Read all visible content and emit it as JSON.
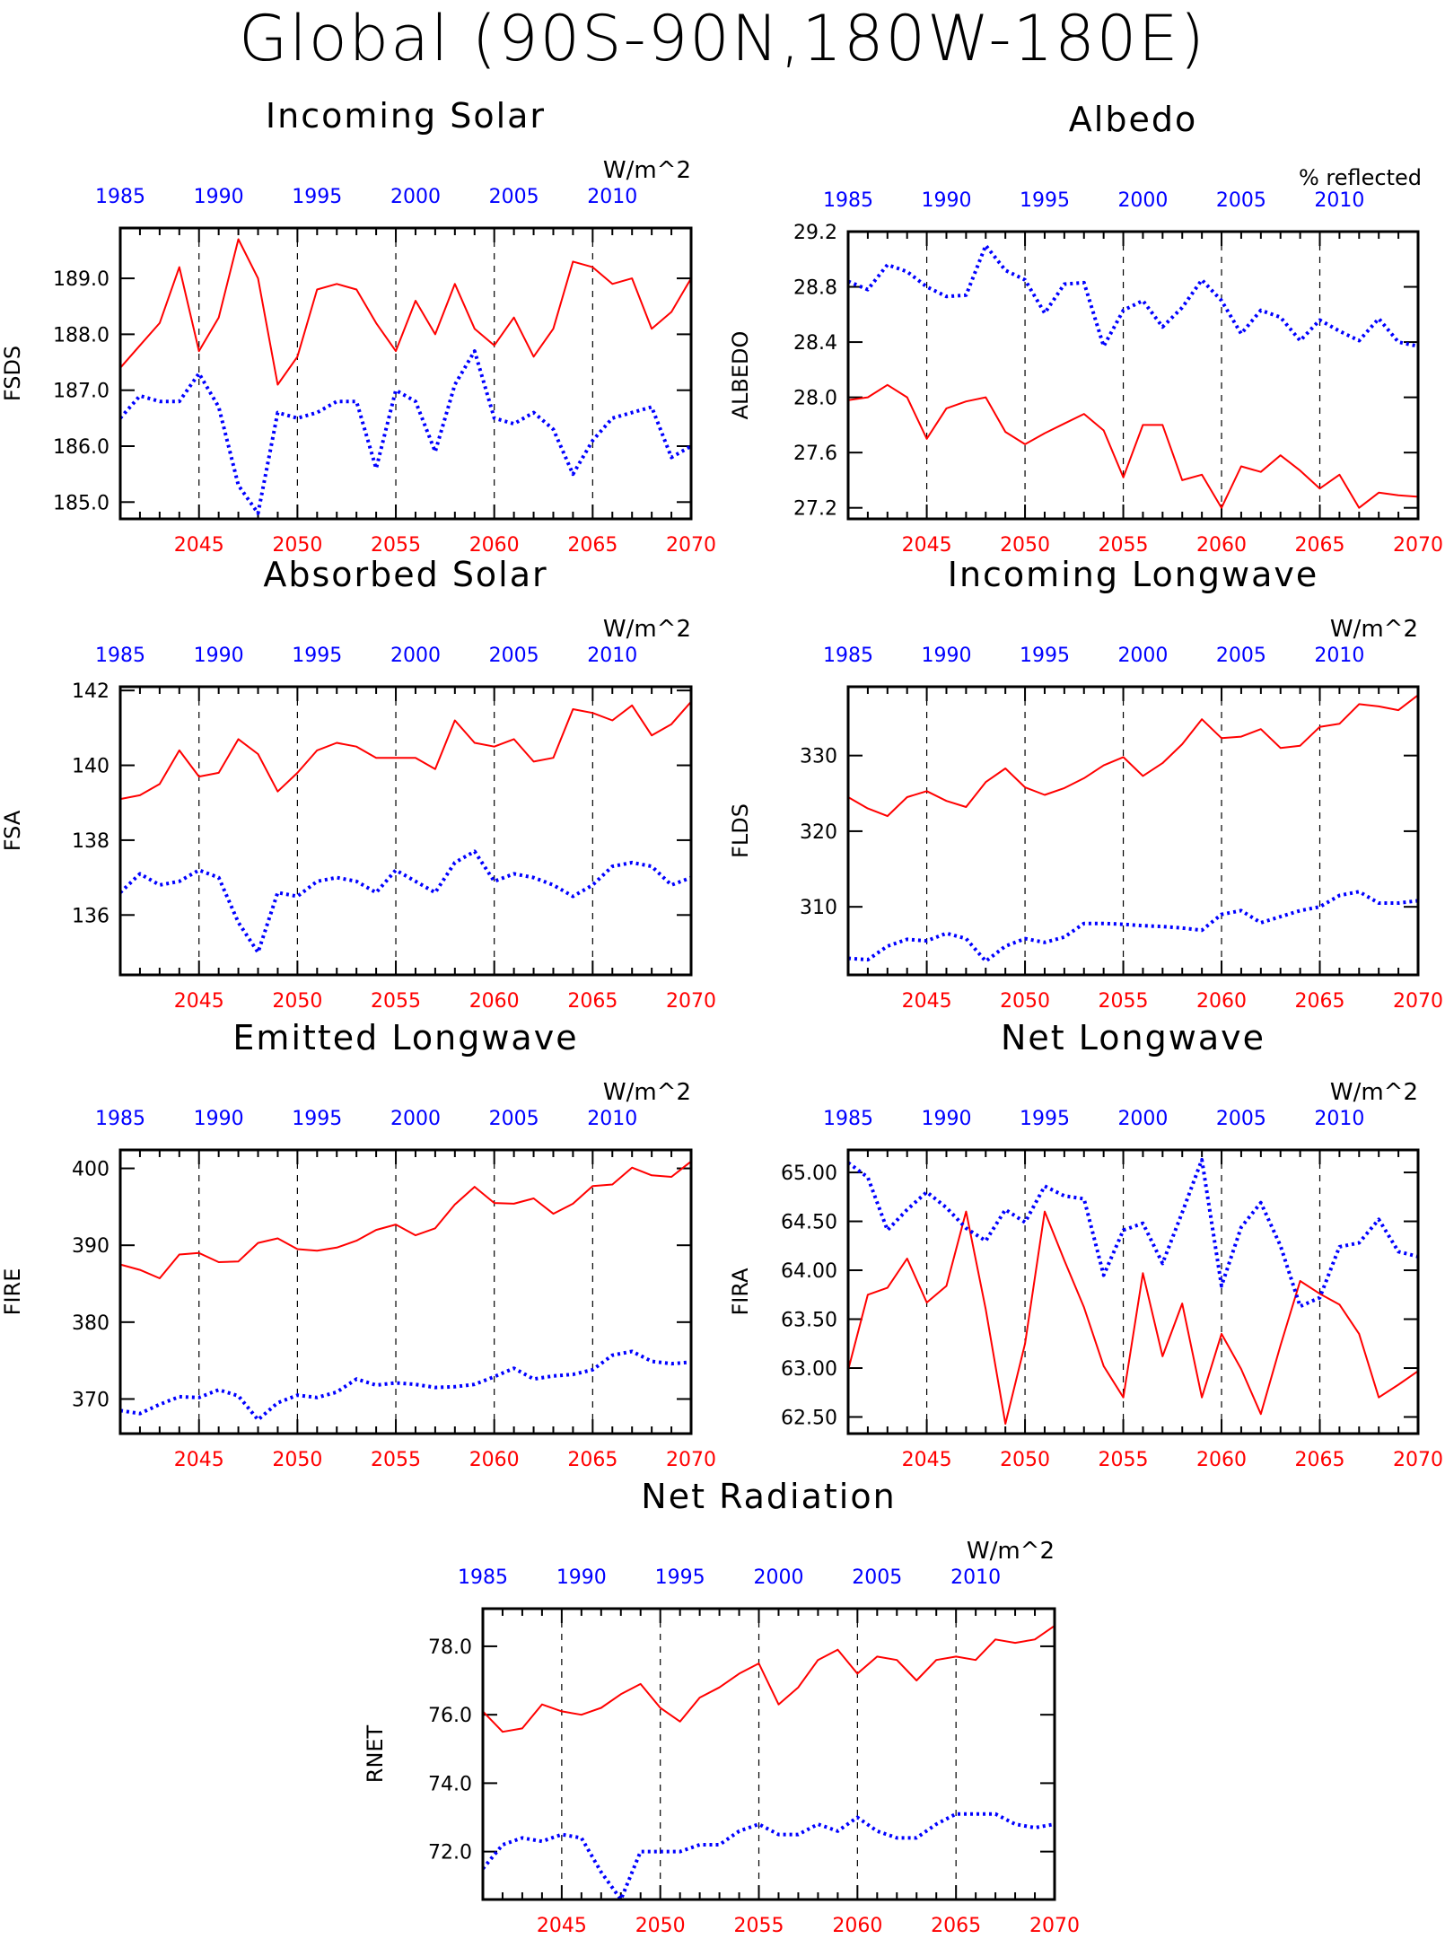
{
  "page": {
    "title": "Global (90S-90N,180W-180E)"
  },
  "chart_data": [
    {
      "type": "line",
      "title": "Incoming Solar",
      "ylabel": "FSDS",
      "units": "W/m^2",
      "top_axis_label": "",
      "xlim": [
        2041,
        2070
      ],
      "ylim": [
        184.7,
        189.9
      ],
      "yticks": [
        185,
        186,
        187,
        188,
        189
      ],
      "ytick_labels": [
        "185.0",
        "186.0",
        "187.0",
        "188.0",
        "189.0"
      ],
      "bottom_ticks": [
        "2045",
        "2050",
        "2055",
        "2060",
        "2065",
        "2070"
      ],
      "top_ticks": [
        "1985",
        "1990",
        "1995",
        "2000",
        "2005",
        "2010"
      ],
      "x": [
        2041,
        2042,
        2043,
        2044,
        2045,
        2046,
        2047,
        2048,
        2049,
        2050,
        2051,
        2052,
        2053,
        2054,
        2055,
        2056,
        2057,
        2058,
        2059,
        2060,
        2061,
        2062,
        2063,
        2064,
        2065,
        2066,
        2067,
        2068,
        2069,
        2070
      ],
      "series": [
        {
          "color": "#ff0000",
          "style": "solid",
          "values": [
            187.4,
            187.8,
            188.2,
            189.2,
            187.7,
            188.3,
            189.7,
            189.0,
            187.1,
            187.6,
            188.8,
            188.9,
            188.8,
            188.2,
            187.7,
            188.6,
            188.0,
            188.9,
            188.1,
            187.8,
            188.3,
            187.6,
            188.1,
            189.3,
            189.2,
            188.9,
            189.0,
            188.1,
            188.4,
            189.0
          ]
        },
        {
          "color": "#0000ff",
          "style": "dotted",
          "values": [
            186.5,
            186.9,
            186.8,
            186.8,
            187.3,
            186.7,
            185.3,
            184.8,
            186.6,
            186.5,
            186.6,
            186.8,
            186.8,
            185.6,
            187.0,
            186.8,
            185.9,
            187.1,
            187.7,
            186.5,
            186.4,
            186.6,
            186.3,
            185.5,
            186.1,
            186.5,
            186.6,
            186.7,
            185.8,
            186.0
          ]
        }
      ]
    },
    {
      "type": "line",
      "title": "Albedo",
      "ylabel": "ALBEDO",
      "units": "",
      "top_axis_label": "% reflected",
      "xlim": [
        2041,
        2070
      ],
      "ylim": [
        27.12,
        29.2
      ],
      "yticks": [
        27.2,
        27.6,
        28.0,
        28.4,
        28.8,
        29.2
      ],
      "ytick_labels": [
        "27.2",
        "27.6",
        "28.0",
        "28.4",
        "28.8",
        "29.2"
      ],
      "bottom_ticks": [
        "2045",
        "2050",
        "2055",
        "2060",
        "2065",
        "2070"
      ],
      "top_ticks": [
        "1985",
        "1990",
        "1995",
        "2000",
        "2005",
        "2010"
      ],
      "x": [
        2041,
        2042,
        2043,
        2044,
        2045,
        2046,
        2047,
        2048,
        2049,
        2050,
        2051,
        2052,
        2053,
        2054,
        2055,
        2056,
        2057,
        2058,
        2059,
        2060,
        2061,
        2062,
        2063,
        2064,
        2065,
        2066,
        2067,
        2068,
        2069,
        2070
      ],
      "series": [
        {
          "color": "#ff0000",
          "style": "solid",
          "values": [
            27.98,
            28.0,
            28.09,
            28.0,
            27.7,
            27.92,
            27.97,
            28.0,
            27.75,
            27.66,
            27.74,
            27.81,
            27.88,
            27.76,
            27.42,
            27.8,
            27.8,
            27.4,
            27.44,
            27.2,
            27.5,
            27.46,
            27.58,
            27.47,
            27.34,
            27.44,
            27.2,
            27.31,
            27.29,
            27.28
          ]
        },
        {
          "color": "#0000ff",
          "style": "dotted",
          "values": [
            28.84,
            28.78,
            28.96,
            28.91,
            28.8,
            28.73,
            28.74,
            29.1,
            28.92,
            28.85,
            28.61,
            28.82,
            28.83,
            28.37,
            28.63,
            28.7,
            28.51,
            28.65,
            28.85,
            28.7,
            28.46,
            28.63,
            28.58,
            28.41,
            28.56,
            28.48,
            28.41,
            28.57,
            28.4,
            28.37
          ]
        }
      ]
    },
    {
      "type": "line",
      "title": "Absorbed Solar",
      "ylabel": "FSA",
      "units": "W/m^2",
      "top_axis_label": "",
      "xlim": [
        2041,
        2070
      ],
      "ylim": [
        134.4,
        142.1
      ],
      "yticks": [
        136,
        138,
        140,
        142
      ],
      "ytick_labels": [
        "136",
        "138",
        "140",
        "142"
      ],
      "bottom_ticks": [
        "2045",
        "2050",
        "2055",
        "2060",
        "2065",
        "2070"
      ],
      "top_ticks": [
        "1985",
        "1990",
        "1995",
        "2000",
        "2005",
        "2010"
      ],
      "x": [
        2041,
        2042,
        2043,
        2044,
        2045,
        2046,
        2047,
        2048,
        2049,
        2050,
        2051,
        2052,
        2053,
        2054,
        2055,
        2056,
        2057,
        2058,
        2059,
        2060,
        2061,
        2062,
        2063,
        2064,
        2065,
        2066,
        2067,
        2068,
        2069,
        2070
      ],
      "series": [
        {
          "color": "#ff0000",
          "style": "solid",
          "values": [
            139.1,
            139.2,
            139.5,
            140.4,
            139.7,
            139.8,
            140.7,
            140.3,
            139.3,
            139.8,
            140.4,
            140.6,
            140.5,
            140.2,
            140.2,
            140.2,
            139.9,
            141.2,
            140.6,
            140.5,
            140.7,
            140.1,
            140.2,
            141.5,
            141.4,
            141.2,
            141.6,
            140.8,
            141.1,
            141.7
          ]
        },
        {
          "color": "#0000ff",
          "style": "dotted",
          "values": [
            136.6,
            137.1,
            136.8,
            136.9,
            137.2,
            137.0,
            135.8,
            135.0,
            136.6,
            136.5,
            136.9,
            137.0,
            136.9,
            136.6,
            137.2,
            136.9,
            136.6,
            137.4,
            137.7,
            136.9,
            137.1,
            137.0,
            136.8,
            136.5,
            136.8,
            137.3,
            137.4,
            137.3,
            136.8,
            137.0
          ]
        }
      ]
    },
    {
      "type": "line",
      "title": "Incoming Longwave",
      "ylabel": "FLDS",
      "units": "W/m^2",
      "top_axis_label": "",
      "xlim": [
        2041,
        2070
      ],
      "ylim": [
        301.0,
        339.1
      ],
      "yticks": [
        310,
        320,
        330
      ],
      "ytick_labels": [
        "310",
        "320",
        "330"
      ],
      "bottom_ticks": [
        "2045",
        "2050",
        "2055",
        "2060",
        "2065",
        "2070"
      ],
      "top_ticks": [
        "1985",
        "1990",
        "1995",
        "2000",
        "2005",
        "2010"
      ],
      "x": [
        2041,
        2042,
        2043,
        2044,
        2045,
        2046,
        2047,
        2048,
        2049,
        2050,
        2051,
        2052,
        2053,
        2054,
        2055,
        2056,
        2057,
        2058,
        2059,
        2060,
        2061,
        2062,
        2063,
        2064,
        2065,
        2066,
        2067,
        2068,
        2069,
        2070
      ],
      "series": [
        {
          "color": "#ff0000",
          "style": "solid",
          "values": [
            324.5,
            323.0,
            322.0,
            324.5,
            325.3,
            324.0,
            323.2,
            326.5,
            328.3,
            325.8,
            324.8,
            325.7,
            327.0,
            328.7,
            329.8,
            327.3,
            329.0,
            331.5,
            334.8,
            332.3,
            332.5,
            333.5,
            331.0,
            331.3,
            333.8,
            334.2,
            336.8,
            336.5,
            336.0,
            338.0
          ]
        },
        {
          "color": "#0000ff",
          "style": "dotted",
          "values": [
            303.2,
            303.0,
            304.8,
            305.7,
            305.5,
            306.5,
            305.8,
            302.8,
            304.8,
            305.8,
            305.3,
            306.0,
            307.8,
            307.8,
            307.7,
            307.5,
            307.4,
            307.2,
            306.9,
            309.0,
            309.5,
            307.9,
            308.7,
            309.5,
            310.0,
            311.5,
            312.0,
            310.5,
            310.5,
            310.8
          ]
        }
      ]
    },
    {
      "type": "line",
      "title": "Emitted Longwave",
      "ylabel": "FIRE",
      "units": "W/m^2",
      "top_axis_label": "",
      "xlim": [
        2041,
        2070
      ],
      "ylim": [
        365.5,
        402.4
      ],
      "yticks": [
        370,
        380,
        390,
        400
      ],
      "ytick_labels": [
        "370",
        "380",
        "390",
        "400"
      ],
      "bottom_ticks": [
        "2045",
        "2050",
        "2055",
        "2060",
        "2065",
        "2070"
      ],
      "top_ticks": [
        "1985",
        "1990",
        "1995",
        "2000",
        "2005",
        "2010"
      ],
      "x": [
        2041,
        2042,
        2043,
        2044,
        2045,
        2046,
        2047,
        2048,
        2049,
        2050,
        2051,
        2052,
        2053,
        2054,
        2055,
        2056,
        2057,
        2058,
        2059,
        2060,
        2061,
        2062,
        2063,
        2064,
        2065,
        2066,
        2067,
        2068,
        2069,
        2070
      ],
      "series": [
        {
          "color": "#ff0000",
          "style": "solid",
          "values": [
            387.5,
            386.8,
            385.7,
            388.8,
            389.0,
            387.8,
            387.9,
            390.3,
            390.9,
            389.5,
            389.3,
            389.7,
            390.6,
            392.0,
            392.7,
            391.3,
            392.2,
            395.3,
            397.6,
            395.5,
            395.4,
            396.1,
            394.1,
            395.4,
            397.7,
            397.9,
            400.1,
            399.1,
            398.9,
            400.9
          ]
        },
        {
          "color": "#0000ff",
          "style": "dotted",
          "values": [
            368.5,
            368.1,
            369.3,
            370.3,
            370.2,
            371.2,
            370.4,
            367.3,
            369.5,
            370.5,
            370.2,
            370.9,
            372.6,
            371.8,
            372.1,
            371.9,
            371.5,
            371.6,
            371.9,
            372.9,
            374.0,
            372.6,
            373.0,
            373.2,
            373.8,
            375.7,
            376.2,
            374.9,
            374.6,
            374.8
          ]
        }
      ]
    },
    {
      "type": "line",
      "title": "Net Longwave",
      "ylabel": "FIRA",
      "units": "W/m^2",
      "top_axis_label": "",
      "xlim": [
        2041,
        2070
      ],
      "ylim": [
        62.33,
        65.23
      ],
      "yticks": [
        62.5,
        63.0,
        63.5,
        64.0,
        64.5,
        65.0
      ],
      "ytick_labels": [
        "62.50",
        "63.00",
        "63.50",
        "64.00",
        "64.50",
        "65.00"
      ],
      "bottom_ticks": [
        "2045",
        "2050",
        "2055",
        "2060",
        "2065",
        "2070"
      ],
      "top_ticks": [
        "1985",
        "1990",
        "1995",
        "2000",
        "2005",
        "2010"
      ],
      "x": [
        2041,
        2042,
        2043,
        2044,
        2045,
        2046,
        2047,
        2048,
        2049,
        2050,
        2051,
        2052,
        2053,
        2054,
        2055,
        2056,
        2057,
        2058,
        2059,
        2060,
        2061,
        2062,
        2063,
        2064,
        2065,
        2066,
        2067,
        2068,
        2069,
        2070
      ],
      "series": [
        {
          "color": "#ff0000",
          "style": "solid",
          "values": [
            62.98,
            63.75,
            63.82,
            64.12,
            63.67,
            63.84,
            64.6,
            63.6,
            62.43,
            63.25,
            64.6,
            64.1,
            63.62,
            63.02,
            62.7,
            63.97,
            63.12,
            63.66,
            62.7,
            63.35,
            62.99,
            62.53,
            63.23,
            63.89,
            63.76,
            63.65,
            63.35,
            62.7,
            62.83,
            62.97
          ]
        },
        {
          "color": "#0000ff",
          "style": "dotted",
          "values": [
            65.1,
            64.95,
            64.41,
            64.62,
            64.8,
            64.64,
            64.43,
            64.3,
            64.62,
            64.49,
            64.86,
            64.76,
            64.73,
            63.95,
            64.41,
            64.48,
            64.07,
            64.59,
            65.13,
            63.84,
            64.44,
            64.69,
            64.25,
            63.63,
            63.72,
            64.24,
            64.28,
            64.52,
            64.19,
            64.14
          ]
        }
      ]
    },
    {
      "type": "line",
      "title": "Net Radiation",
      "ylabel": "RNET",
      "units": "W/m^2",
      "top_axis_label": "",
      "xlim": [
        2041,
        2070
      ],
      "ylim": [
        70.6,
        79.1
      ],
      "yticks": [
        72,
        74,
        76,
        78
      ],
      "ytick_labels": [
        "72.0",
        "74.0",
        "76.0",
        "78.0"
      ],
      "bottom_ticks": [
        "2045",
        "2050",
        "2055",
        "2060",
        "2065",
        "2070"
      ],
      "top_ticks": [
        "1985",
        "1990",
        "1995",
        "2000",
        "2005",
        "2010"
      ],
      "x": [
        2041,
        2042,
        2043,
        2044,
        2045,
        2046,
        2047,
        2048,
        2049,
        2050,
        2051,
        2052,
        2053,
        2054,
        2055,
        2056,
        2057,
        2058,
        2059,
        2060,
        2061,
        2062,
        2063,
        2064,
        2065,
        2066,
        2067,
        2068,
        2069,
        2070
      ],
      "series": [
        {
          "color": "#ff0000",
          "style": "solid",
          "values": [
            76.1,
            75.5,
            75.6,
            76.3,
            76.1,
            76.0,
            76.2,
            76.6,
            76.9,
            76.2,
            75.8,
            76.5,
            76.8,
            77.2,
            77.5,
            76.3,
            76.8,
            77.6,
            77.9,
            77.2,
            77.7,
            77.6,
            77.0,
            77.6,
            77.7,
            77.6,
            78.2,
            78.1,
            78.2,
            78.6
          ]
        },
        {
          "color": "#0000ff",
          "style": "dotted",
          "values": [
            71.5,
            72.2,
            72.4,
            72.3,
            72.5,
            72.4,
            71.4,
            70.6,
            72.0,
            72.0,
            72.0,
            72.2,
            72.2,
            72.6,
            72.8,
            72.5,
            72.5,
            72.8,
            72.6,
            73.0,
            72.6,
            72.4,
            72.4,
            72.8,
            73.1,
            73.1,
            73.1,
            72.8,
            72.7,
            72.8
          ]
        }
      ]
    }
  ]
}
